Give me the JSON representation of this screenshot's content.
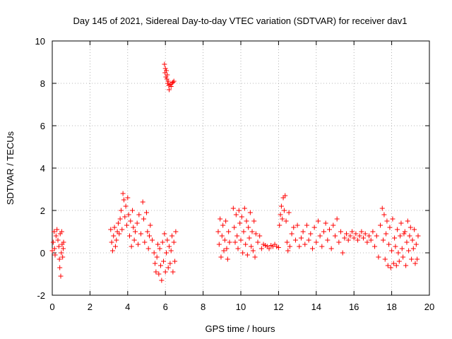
{
  "chart_data": {
    "type": "scatter",
    "title": "Day 145 of 2021, Sidereal Day-to-day VTEC variation (SDTVAR) for receiver dav1",
    "xlabel": "GPS time / hours",
    "ylabel": "SDTVAR / TECUs",
    "xlim": [
      0,
      20
    ],
    "ylim": [
      -2,
      10
    ],
    "xticks": [
      "0",
      "2",
      "4",
      "6",
      "8",
      "10",
      "12",
      "14",
      "16",
      "18",
      "20"
    ],
    "yticks": [
      "-2",
      "0",
      "2",
      "4",
      "6",
      "8",
      "10"
    ],
    "grid": true,
    "marker": "plus",
    "color": "#ff0000",
    "series": [
      {
        "name": "dav1",
        "points": [
          [
            0.0,
            0.1
          ],
          [
            0.05,
            0.5
          ],
          [
            0.1,
            1.0
          ],
          [
            0.12,
            0.2
          ],
          [
            0.15,
            -0.1
          ],
          [
            0.2,
            0.8
          ],
          [
            0.25,
            1.1
          ],
          [
            0.3,
            0.6
          ],
          [
            0.35,
            0.3
          ],
          [
            0.38,
            -0.3
          ],
          [
            0.4,
            -0.7
          ],
          [
            0.42,
            0.9
          ],
          [
            0.45,
            -1.1
          ],
          [
            0.48,
            0.0
          ],
          [
            0.5,
            1.0
          ],
          [
            0.52,
            0.4
          ],
          [
            0.55,
            -0.2
          ],
          [
            0.58,
            0.2
          ],
          [
            0.6,
            0.5
          ],
          [
            3.1,
            1.1
          ],
          [
            3.15,
            0.5
          ],
          [
            3.2,
            0.1
          ],
          [
            3.25,
            0.8
          ],
          [
            3.3,
            1.2
          ],
          [
            3.35,
            0.3
          ],
          [
            3.4,
            0.6
          ],
          [
            3.45,
            1.0
          ],
          [
            3.5,
            1.4
          ],
          [
            3.55,
            0.9
          ],
          [
            3.6,
            1.6
          ],
          [
            3.65,
            2.0
          ],
          [
            3.7,
            1.1
          ],
          [
            3.75,
            2.8
          ],
          [
            3.8,
            2.5
          ],
          [
            3.85,
            1.7
          ],
          [
            3.9,
            2.2
          ],
          [
            3.95,
            1.3
          ],
          [
            4.0,
            2.6
          ],
          [
            4.05,
            1.8
          ],
          [
            4.1,
            0.8
          ],
          [
            4.15,
            1.5
          ],
          [
            4.2,
            0.3
          ],
          [
            4.25,
            2.0
          ],
          [
            4.3,
            1.2
          ],
          [
            4.35,
            0.6
          ],
          [
            4.4,
            1.0
          ],
          [
            4.5,
            1.4
          ],
          [
            4.55,
            0.4
          ],
          [
            4.6,
            1.8
          ],
          [
            4.7,
            0.9
          ],
          [
            4.8,
            2.4
          ],
          [
            4.85,
            1.6
          ],
          [
            4.9,
            0.5
          ],
          [
            5.0,
            1.9
          ],
          [
            5.05,
            1.0
          ],
          [
            5.1,
            0.2
          ],
          [
            5.15,
            0.8
          ],
          [
            5.2,
            1.3
          ],
          [
            5.3,
            0.6
          ],
          [
            5.4,
            0.0
          ],
          [
            5.45,
            -0.5
          ],
          [
            5.5,
            -0.9
          ],
          [
            5.55,
            -0.2
          ],
          [
            5.6,
            0.4
          ],
          [
            5.65,
            -1.0
          ],
          [
            5.7,
            0.2
          ],
          [
            5.75,
            -0.6
          ],
          [
            5.8,
            -1.3
          ],
          [
            5.85,
            0.5
          ],
          [
            5.9,
            -0.4
          ],
          [
            5.95,
            0.9
          ],
          [
            6.0,
            -0.9
          ],
          [
            6.05,
            0.0
          ],
          [
            6.1,
            0.6
          ],
          [
            6.15,
            -0.7
          ],
          [
            6.2,
            0.3
          ],
          [
            6.25,
            -0.5
          ],
          [
            6.3,
            0.1
          ],
          [
            6.35,
            0.8
          ],
          [
            6.4,
            -0.9
          ],
          [
            6.45,
            0.5
          ],
          [
            6.5,
            -0.4
          ],
          [
            6.55,
            1.0
          ],
          [
            5.95,
            8.9
          ],
          [
            5.98,
            8.5
          ],
          [
            6.0,
            8.7
          ],
          [
            6.03,
            8.3
          ],
          [
            6.05,
            8.6
          ],
          [
            6.08,
            8.2
          ],
          [
            6.1,
            8.4
          ],
          [
            6.12,
            8.0
          ],
          [
            6.15,
            8.1
          ],
          [
            6.18,
            7.9
          ],
          [
            6.2,
            7.7
          ],
          [
            6.25,
            7.95
          ],
          [
            6.3,
            7.85
          ],
          [
            6.35,
            8.0
          ],
          [
            6.4,
            8.05
          ],
          [
            6.45,
            8.1
          ],
          [
            8.8,
            1.0
          ],
          [
            8.85,
            0.4
          ],
          [
            8.9,
            1.6
          ],
          [
            8.95,
            -0.2
          ],
          [
            9.0,
            0.8
          ],
          [
            9.05,
            1.3
          ],
          [
            9.1,
            0.1
          ],
          [
            9.15,
            0.6
          ],
          [
            9.2,
            1.5
          ],
          [
            9.25,
            0.2
          ],
          [
            9.3,
            -0.3
          ],
          [
            9.35,
            1.0
          ],
          [
            9.4,
            0.5
          ],
          [
            9.6,
            2.1
          ],
          [
            9.65,
            1.2
          ],
          [
            9.7,
            0.5
          ],
          [
            9.75,
            1.8
          ],
          [
            9.8,
            0.8
          ],
          [
            9.85,
            0.2
          ],
          [
            9.9,
            2.0
          ],
          [
            9.95,
            1.4
          ],
          [
            10.0,
            0.6
          ],
          [
            10.05,
            1.7
          ],
          [
            10.1,
            0.0
          ],
          [
            10.15,
            1.0
          ],
          [
            10.2,
            2.1
          ],
          [
            10.25,
            0.4
          ],
          [
            10.3,
            1.5
          ],
          [
            10.35,
            -0.1
          ],
          [
            10.4,
            1.2
          ],
          [
            10.45,
            0.7
          ],
          [
            10.5,
            1.9
          ],
          [
            10.55,
            0.3
          ],
          [
            10.6,
            1.0
          ],
          [
            10.65,
            0.1
          ],
          [
            10.7,
            1.5
          ],
          [
            10.75,
            -0.2
          ],
          [
            10.8,
            0.9
          ],
          [
            10.9,
            0.5
          ],
          [
            11.0,
            0.8
          ],
          [
            11.1,
            0.2
          ],
          [
            11.2,
            0.4
          ],
          [
            11.3,
            0.35
          ],
          [
            11.4,
            0.3
          ],
          [
            11.5,
            0.2
          ],
          [
            11.6,
            0.35
          ],
          [
            11.7,
            0.3
          ],
          [
            11.8,
            0.4
          ],
          [
            11.9,
            0.3
          ],
          [
            12.0,
            0.25
          ],
          [
            12.05,
            1.3
          ],
          [
            12.1,
            1.8
          ],
          [
            12.15,
            2.2
          ],
          [
            12.2,
            1.6
          ],
          [
            12.25,
            2.6
          ],
          [
            12.3,
            2.0
          ],
          [
            12.35,
            2.7
          ],
          [
            12.4,
            1.5
          ],
          [
            12.45,
            0.5
          ],
          [
            12.5,
            0.1
          ],
          [
            12.55,
            1.9
          ],
          [
            12.6,
            0.3
          ],
          [
            12.7,
            0.9
          ],
          [
            12.8,
            1.2
          ],
          [
            12.9,
            0.6
          ],
          [
            13.0,
            1.3
          ],
          [
            13.1,
            0.3
          ],
          [
            13.2,
            0.7
          ],
          [
            13.3,
            1.0
          ],
          [
            13.4,
            0.4
          ],
          [
            13.5,
            1.3
          ],
          [
            13.6,
            0.6
          ],
          [
            13.7,
            0.9
          ],
          [
            13.8,
            0.2
          ],
          [
            13.9,
            1.2
          ],
          [
            14.0,
            0.5
          ],
          [
            14.1,
            1.5
          ],
          [
            14.2,
            0.8
          ],
          [
            14.3,
            0.3
          ],
          [
            14.4,
            1.0
          ],
          [
            14.5,
            1.4
          ],
          [
            14.6,
            0.6
          ],
          [
            14.7,
            1.1
          ],
          [
            14.8,
            0.2
          ],
          [
            14.9,
            1.3
          ],
          [
            15.0,
            0.8
          ],
          [
            15.1,
            1.6
          ],
          [
            15.2,
            0.5
          ],
          [
            15.3,
            1.0
          ],
          [
            15.4,
            0.0
          ],
          [
            15.5,
            0.7
          ],
          [
            15.6,
            0.9
          ],
          [
            15.7,
            0.6
          ],
          [
            15.8,
            0.8
          ],
          [
            15.9,
            1.0
          ],
          [
            16.0,
            0.7
          ],
          [
            16.1,
            0.9
          ],
          [
            16.2,
            0.6
          ],
          [
            16.3,
            0.8
          ],
          [
            16.4,
            1.0
          ],
          [
            16.5,
            0.7
          ],
          [
            16.6,
            0.9
          ],
          [
            16.7,
            0.5
          ],
          [
            16.8,
            0.8
          ],
          [
            16.9,
            0.6
          ],
          [
            17.0,
            1.0
          ],
          [
            17.1,
            0.3
          ],
          [
            17.2,
            0.8
          ],
          [
            17.3,
            -0.2
          ],
          [
            17.4,
            1.3
          ],
          [
            17.5,
            2.1
          ],
          [
            17.55,
            0.6
          ],
          [
            17.6,
            1.8
          ],
          [
            17.65,
            -0.3
          ],
          [
            17.7,
            0.9
          ],
          [
            17.75,
            1.5
          ],
          [
            17.8,
            -0.6
          ],
          [
            17.85,
            0.4
          ],
          [
            17.9,
            1.2
          ],
          [
            17.95,
            -0.7
          ],
          [
            18.0,
            0.1
          ],
          [
            18.05,
            1.6
          ],
          [
            18.1,
            -0.5
          ],
          [
            18.15,
            0.7
          ],
          [
            18.2,
            0.3
          ],
          [
            18.25,
            -0.6
          ],
          [
            18.3,
            1.1
          ],
          [
            18.35,
            0.0
          ],
          [
            18.4,
            -0.4
          ],
          [
            18.45,
            0.8
          ],
          [
            18.5,
            1.4
          ],
          [
            18.55,
            0.2
          ],
          [
            18.6,
            -0.2
          ],
          [
            18.65,
            0.9
          ],
          [
            18.7,
            1.0
          ],
          [
            18.75,
            -0.6
          ],
          [
            18.8,
            0.5
          ],
          [
            18.85,
            1.5
          ],
          [
            18.9,
            0.1
          ],
          [
            18.95,
            0.8
          ],
          [
            19.0,
            1.2
          ],
          [
            19.05,
            -0.3
          ],
          [
            19.1,
            0.6
          ],
          [
            19.15,
            0.2
          ],
          [
            19.2,
            1.1
          ],
          [
            19.25,
            -0.5
          ],
          [
            19.3,
            0.4
          ],
          [
            19.35,
            -0.3
          ],
          [
            19.4,
            0.8
          ]
        ]
      }
    ]
  }
}
